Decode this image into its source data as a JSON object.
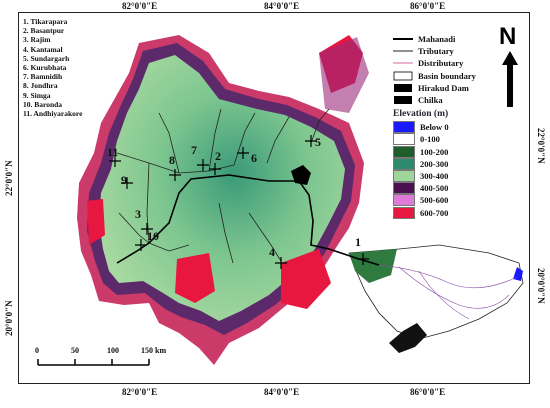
{
  "map": {
    "longitude_labels": [
      "82°0'0\"E",
      "84°0'0\"E",
      "86°0'0\"E",
      "82°0'0\"E",
      "84°0'0\"E",
      "86°0'0\"E"
    ],
    "latitude_labels": [
      "22°0'0\"N",
      "20°0'0\"N",
      "22°0'0\"N",
      "20°0'0\"N"
    ],
    "stations": [
      "1. Tikarapara",
      "2. Basantpur",
      "3. Rajim",
      "4. Kantamal",
      "5. Sundargarh",
      "6. Kurubhata",
      "7. Bamnidih",
      "8. Jondhra",
      "9. Simga",
      "10. Baronda",
      "11. Andhiyarakore"
    ],
    "station_numbers": [
      "1",
      "2",
      "3",
      "4",
      "5",
      "6",
      "7",
      "8",
      "9",
      "10",
      "11"
    ],
    "legend": {
      "features": [
        "Mahanadi",
        "Tributary",
        "Distributary",
        "Basin boundary",
        "Hirakud Dam",
        "Chilka"
      ],
      "elevation_title": "Elevation (m)",
      "classes": [
        {
          "label": "Below 0",
          "color": "#1a1aff"
        },
        {
          "label": "0-100",
          "color": "#ffffff"
        },
        {
          "label": "100-200",
          "color": "#1f5e2a"
        },
        {
          "label": "200-300",
          "color": "#2e8a6c"
        },
        {
          "label": "300-400",
          "color": "#9fd59a"
        },
        {
          "label": "400-500",
          "color": "#4a1050"
        },
        {
          "label": "500-600",
          "color": "#e07ad8"
        },
        {
          "label": "600-700",
          "color": "#e8173f"
        }
      ]
    },
    "north_arrow": "N",
    "scale_bar": [
      "0",
      "50",
      "100",
      "150 km"
    ]
  }
}
